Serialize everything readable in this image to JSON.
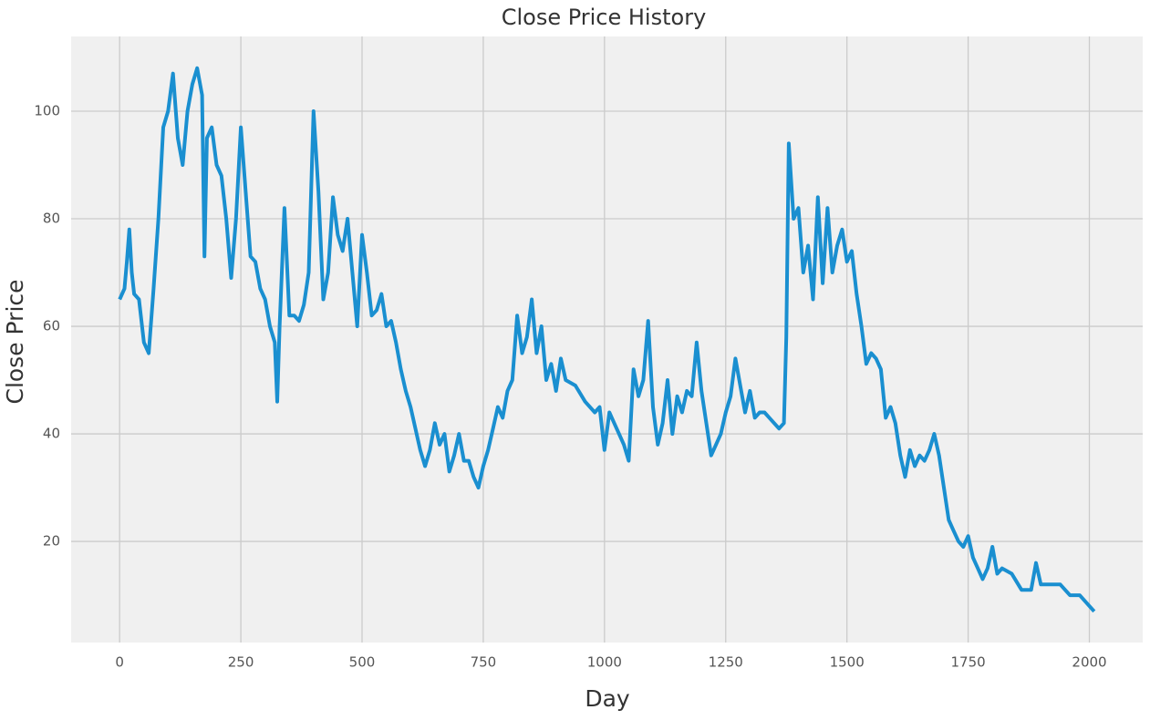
{
  "chart_data": {
    "type": "line",
    "title": "Close Price History",
    "x_label": "Day",
    "y_label": "Close Price",
    "x": [
      0,
      10,
      15,
      20,
      25,
      30,
      40,
      50,
      60,
      70,
      80,
      90,
      100,
      110,
      120,
      130,
      140,
      150,
      160,
      170,
      175,
      180,
      190,
      200,
      210,
      220,
      230,
      240,
      250,
      260,
      270,
      280,
      290,
      300,
      310,
      320,
      325,
      330,
      340,
      350,
      360,
      370,
      380,
      390,
      400,
      410,
      420,
      430,
      440,
      450,
      460,
      470,
      480,
      490,
      500,
      510,
      520,
      530,
      540,
      550,
      560,
      570,
      580,
      590,
      600,
      610,
      620,
      630,
      640,
      650,
      660,
      670,
      680,
      690,
      700,
      710,
      720,
      730,
      740,
      750,
      760,
      770,
      780,
      790,
      800,
      810,
      820,
      830,
      840,
      850,
      860,
      870,
      880,
      890,
      900,
      910,
      920,
      940,
      960,
      980,
      990,
      1000,
      1010,
      1020,
      1030,
      1040,
      1050,
      1060,
      1070,
      1080,
      1090,
      1100,
      1110,
      1120,
      1130,
      1140,
      1150,
      1160,
      1170,
      1180,
      1190,
      1200,
      1210,
      1220,
      1230,
      1240,
      1250,
      1260,
      1270,
      1280,
      1290,
      1300,
      1310,
      1320,
      1330,
      1340,
      1350,
      1360,
      1370,
      1375,
      1380,
      1390,
      1400,
      1410,
      1420,
      1430,
      1440,
      1450,
      1460,
      1470,
      1480,
      1490,
      1500,
      1510,
      1520,
      1530,
      1540,
      1550,
      1560,
      1570,
      1580,
      1590,
      1600,
      1610,
      1620,
      1630,
      1640,
      1650,
      1660,
      1670,
      1680,
      1690,
      1700,
      1710,
      1720,
      1730,
      1740,
      1750,
      1760,
      1770,
      1780,
      1790,
      1800,
      1810,
      1820,
      1840,
      1860,
      1880,
      1890,
      1900,
      1920,
      1940,
      1960,
      1980,
      2000,
      2010
    ],
    "series": [
      {
        "name": "Close",
        "color": "#1a8fd0",
        "values": [
          65,
          67,
          72,
          78,
          70,
          66,
          65,
          57,
          55,
          67,
          80,
          97,
          100,
          107,
          95,
          90,
          100,
          105,
          108,
          103,
          73,
          95,
          97,
          90,
          88,
          80,
          69,
          80,
          97,
          85,
          73,
          72,
          67,
          65,
          60,
          57,
          46,
          60,
          82,
          62,
          62,
          61,
          64,
          70,
          100,
          85,
          65,
          70,
          84,
          77,
          74,
          80,
          70,
          60,
          77,
          70,
          62,
          63,
          66,
          60,
          61,
          57,
          52,
          48,
          45,
          41,
          37,
          34,
          37,
          42,
          38,
          40,
          33,
          36,
          40,
          35,
          35,
          32,
          30,
          34,
          37,
          41,
          45,
          43,
          48,
          50,
          62,
          55,
          58,
          65,
          55,
          60,
          50,
          53,
          48,
          54,
          50,
          49,
          46,
          44,
          45,
          37,
          44,
          42,
          40,
          38,
          35,
          52,
          47,
          50,
          61,
          45,
          38,
          42,
          50,
          40,
          47,
          44,
          48,
          47,
          57,
          48,
          42,
          36,
          38,
          40,
          44,
          47,
          54,
          49,
          44,
          48,
          43,
          44,
          44,
          43,
          42,
          41,
          42,
          58,
          94,
          80,
          82,
          70,
          75,
          65,
          84,
          68,
          82,
          70,
          75,
          78,
          72,
          74,
          66,
          60,
          53,
          55,
          54,
          52,
          43,
          45,
          42,
          36,
          32,
          37,
          34,
          36,
          35,
          37,
          40,
          36,
          30,
          24,
          22,
          20,
          19,
          21,
          17,
          15,
          13,
          15,
          19,
          14,
          15,
          14,
          11,
          11,
          16,
          12,
          12,
          12,
          10,
          10,
          8,
          7
        ]
      }
    ],
    "xlim": [
      -100,
      2110
    ],
    "ylim": [
      1.2,
      113.9
    ],
    "xticks": [
      0,
      250,
      500,
      750,
      1000,
      1250,
      1500,
      1750,
      2000
    ],
    "yticks": [
      20,
      40,
      60,
      80,
      100
    ],
    "grid": true
  }
}
